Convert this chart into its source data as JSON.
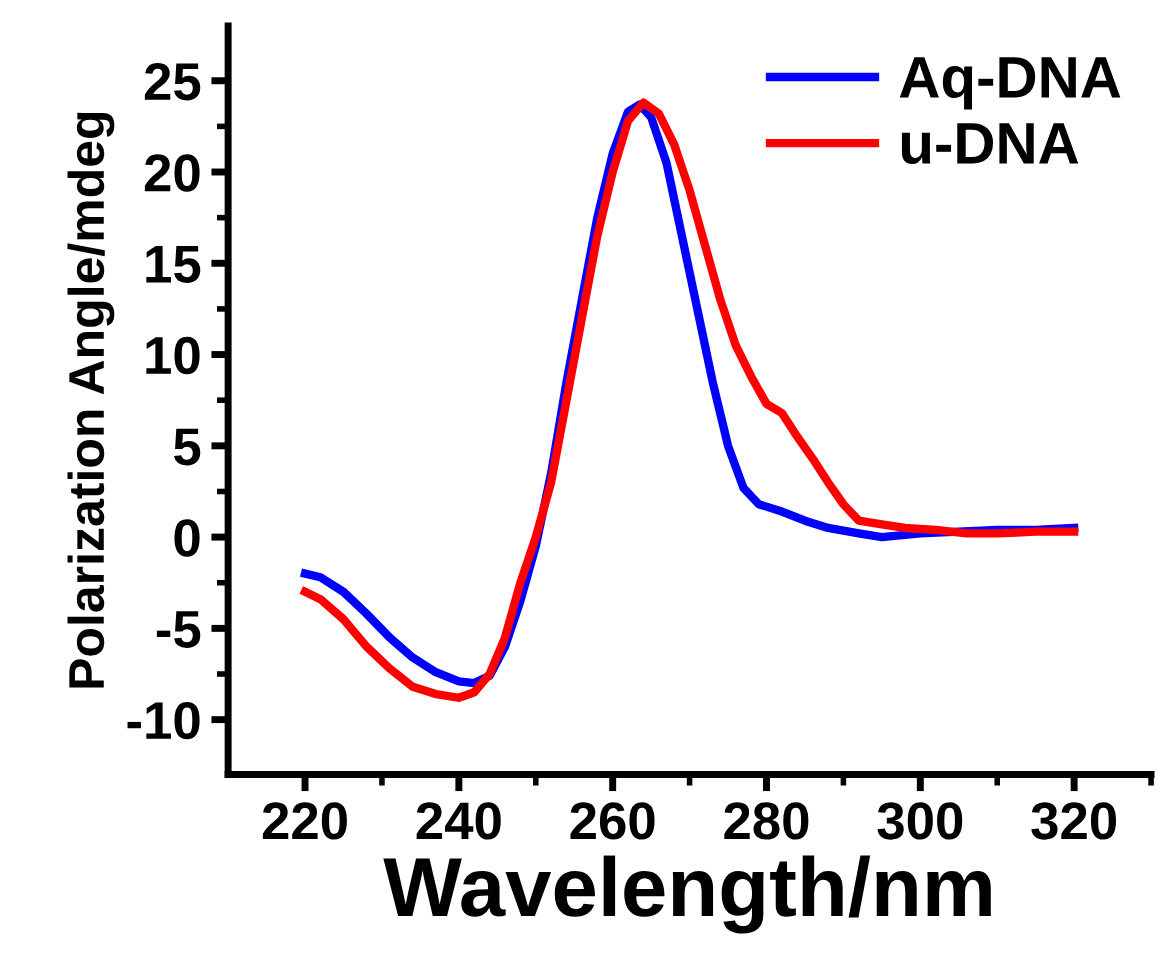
{
  "chart_data": {
    "type": "line",
    "xlabel": "Wavelength/nm",
    "ylabel": "Polarization Angle/mdeg",
    "xlim": [
      210,
      330
    ],
    "ylim": [
      -13,
      28
    ],
    "xticks": [
      220,
      240,
      260,
      280,
      300,
      320
    ],
    "yticks": [
      -10,
      -5,
      0,
      5,
      10,
      15,
      20,
      25
    ],
    "grid": false,
    "legend": "top right",
    "marker": "none",
    "line_style": "solid",
    "series": [
      {
        "name": "Aq-DNA",
        "color": "#0000ff",
        "x": [
          220,
          222,
          225,
          228,
          231,
          234,
          237,
          240,
          242,
          244,
          246,
          248,
          250,
          252,
          254,
          256,
          258,
          260,
          262,
          263.5,
          265,
          267,
          269,
          271,
          273,
          275,
          277,
          279,
          282,
          285,
          288,
          292,
          295,
          300,
          305,
          310,
          315,
          320
        ],
        "values": [
          -2.0,
          -2.2,
          -3.0,
          -4.2,
          -5.5,
          -6.6,
          -7.4,
          -7.9,
          -8.0,
          -7.6,
          -6.0,
          -3.5,
          -0.5,
          3.5,
          8.5,
          13,
          17.5,
          21,
          23.3,
          23.7,
          23,
          20.5,
          16.5,
          12.5,
          8.5,
          5,
          2.7,
          1.8,
          1.4,
          0.9,
          0.5,
          0.2,
          0,
          0.2,
          0.3,
          0.4,
          0.4,
          0.5
        ]
      },
      {
        "name": "u-DNA",
        "color": "#ff0000",
        "x": [
          220,
          222,
          225,
          228,
          231,
          234,
          237,
          240,
          242,
          244,
          246,
          248,
          250,
          252,
          254,
          256,
          258,
          260,
          262,
          264,
          266,
          268,
          270,
          272,
          274,
          276,
          278,
          280,
          282,
          284,
          286,
          288,
          290,
          292,
          295,
          298,
          302,
          306,
          310,
          315,
          320
        ],
        "values": [
          -3.0,
          -3.4,
          -4.5,
          -6.0,
          -7.2,
          -8.2,
          -8.6,
          -8.8,
          -8.5,
          -7.5,
          -5.5,
          -2.5,
          0,
          3,
          7.5,
          12,
          16.5,
          20,
          22.8,
          23.8,
          23.2,
          21.5,
          19,
          16,
          13,
          10.5,
          8.8,
          7.3,
          6.8,
          5.5,
          4.3,
          3,
          1.8,
          0.9,
          0.7,
          0.5,
          0.4,
          0.2,
          0.2,
          0.3,
          0.3
        ]
      }
    ]
  }
}
